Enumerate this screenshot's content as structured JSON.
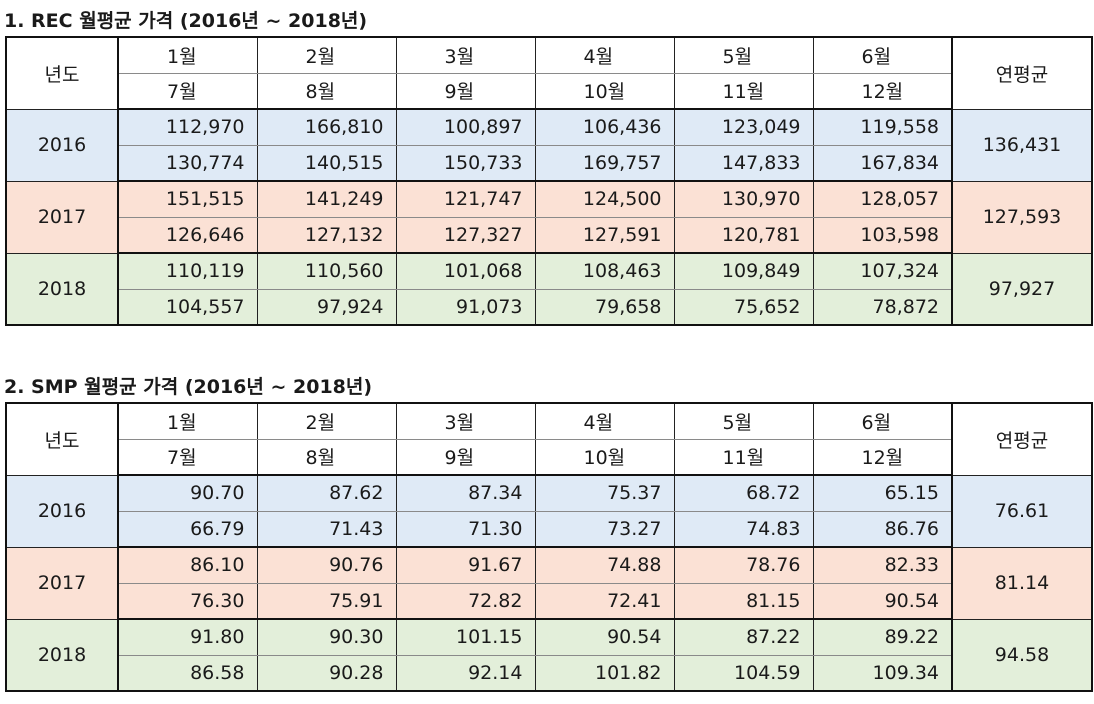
{
  "rec": {
    "title": "1. REC 월평균 가격 (2016년 ~ 2018년)",
    "year_header": "년도",
    "avg_header": "연평균",
    "months_top": [
      "1월",
      "2월",
      "3월",
      "4월",
      "5월",
      "6월"
    ],
    "months_bottom": [
      "7월",
      "8월",
      "9월",
      "10월",
      "11월",
      "12월"
    ],
    "rows": [
      {
        "year": "2016",
        "h1": [
          "112,970",
          "166,810",
          "100,897",
          "106,436",
          "123,049",
          "119,558"
        ],
        "h2": [
          "130,774",
          "140,515",
          "150,733",
          "169,757",
          "147,833",
          "167,834"
        ],
        "avg": "136,431"
      },
      {
        "year": "2017",
        "h1": [
          "151,515",
          "141,249",
          "121,747",
          "124,500",
          "130,970",
          "128,057"
        ],
        "h2": [
          "126,646",
          "127,132",
          "127,327",
          "127,591",
          "120,781",
          "103,598"
        ],
        "avg": "127,593"
      },
      {
        "year": "2018",
        "h1": [
          "110,119",
          "110,560",
          "101,068",
          "108,463",
          "109,849",
          "107,324"
        ],
        "h2": [
          "104,557",
          "97,924",
          "91,073",
          "79,658",
          "75,652",
          "78,872"
        ],
        "avg": "97,927"
      }
    ]
  },
  "smp": {
    "title": "2. SMP 월평균 가격 (2016년 ~ 2018년)",
    "year_header": "년도",
    "avg_header": "연평균",
    "months_top": [
      "1월",
      "2월",
      "3월",
      "4월",
      "5월",
      "6월"
    ],
    "months_bottom": [
      "7월",
      "8월",
      "9월",
      "10월",
      "11월",
      "12월"
    ],
    "rows": [
      {
        "year": "2016",
        "h1": [
          "90.70",
          "87.62",
          "87.34",
          "75.37",
          "68.72",
          "65.15"
        ],
        "h2": [
          "66.79",
          "71.43",
          "71.30",
          "73.27",
          "74.83",
          "86.76"
        ],
        "avg": "76.61"
      },
      {
        "year": "2017",
        "h1": [
          "86.10",
          "90.76",
          "91.67",
          "74.88",
          "78.76",
          "82.33"
        ],
        "h2": [
          "76.30",
          "75.91",
          "72.82",
          "72.41",
          "81.15",
          "90.54"
        ],
        "avg": "81.14"
      },
      {
        "year": "2018",
        "h1": [
          "91.80",
          "90.30",
          "101.15",
          "90.54",
          "87.22",
          "89.22"
        ],
        "h2": [
          "86.58",
          "90.28",
          "92.14",
          "101.82",
          "104.59",
          "109.34"
        ],
        "avg": "94.58"
      }
    ]
  },
  "colors": {
    "row_2016": "#dfeaf6",
    "row_2017": "#fbe1d5",
    "row_2018": "#e3efda"
  }
}
